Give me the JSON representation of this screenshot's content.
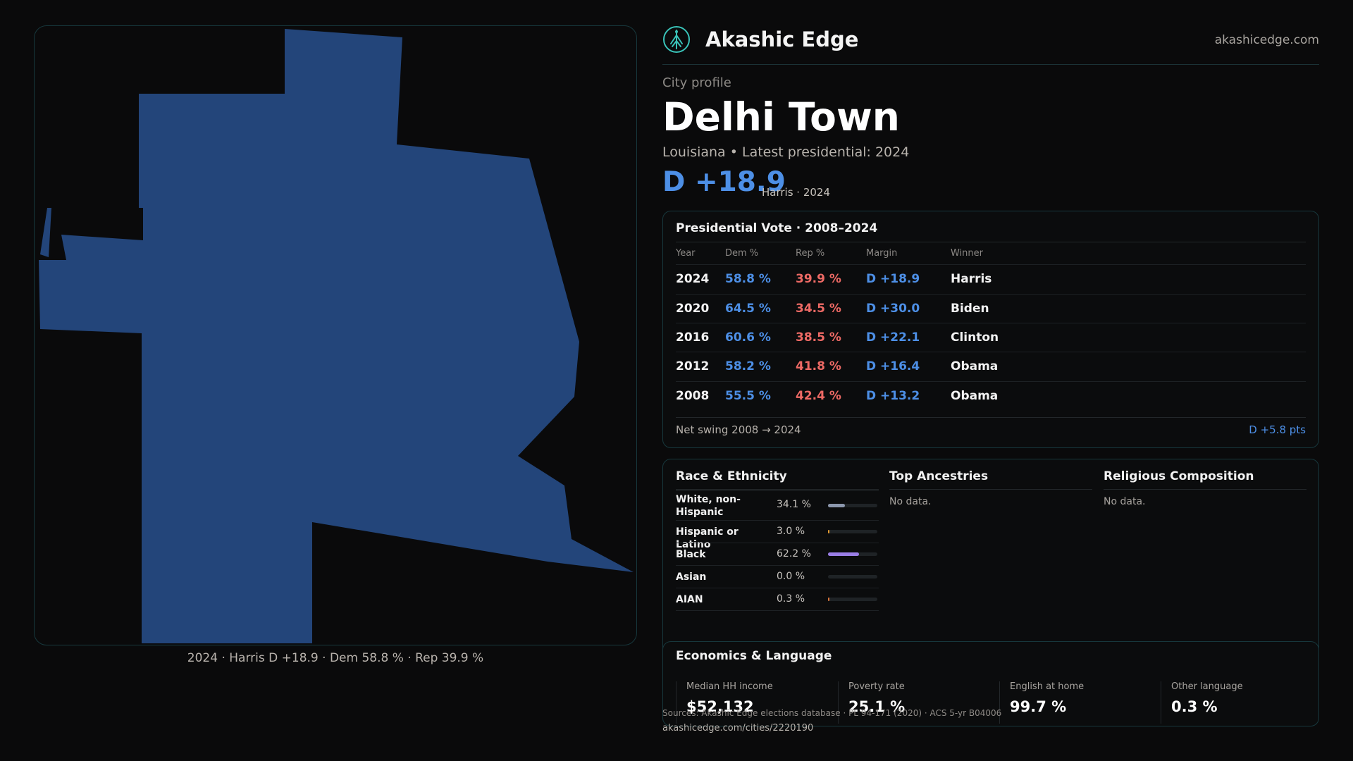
{
  "map": {
    "fill_color": "#23457a",
    "border_color": "#17383d",
    "caption": "2024 · Harris D +18.9 · Dem 58.8 % · Rep 39.9 %"
  },
  "header": {
    "brand": "Akashic Edge",
    "url": "akashicedge.com",
    "logo_icon": "compass-tree-icon"
  },
  "profile": {
    "eyebrow": "City profile",
    "title": "Delhi Town",
    "subtitle": "Louisiana • Latest presidential: 2024",
    "margin": "D +18.9",
    "margin_note": "Harris · 2024"
  },
  "vote_table": {
    "title": "Presidential Vote · 2008–2024",
    "headers": [
      "Year",
      "Dem %",
      "Rep %",
      "Margin",
      "Winner"
    ],
    "rows": [
      {
        "year": "2024",
        "dem": "58.8 %",
        "rep": "39.9 %",
        "margin": "D +18.9",
        "winner": "Harris"
      },
      {
        "year": "2020",
        "dem": "64.5 %",
        "rep": "34.5 %",
        "margin": "D +30.0",
        "winner": "Biden"
      },
      {
        "year": "2016",
        "dem": "60.6 %",
        "rep": "38.5 %",
        "margin": "D +22.1",
        "winner": "Clinton"
      },
      {
        "year": "2012",
        "dem": "58.2 %",
        "rep": "41.8 %",
        "margin": "D +16.4",
        "winner": "Obama"
      },
      {
        "year": "2008",
        "dem": "55.5 %",
        "rep": "42.4 %",
        "margin": "D +13.2",
        "winner": "Obama"
      }
    ],
    "swing_label": "Net swing 2008 → 2024",
    "swing_value": "D +5.8 pts",
    "colors": {
      "dem": "#4d8fe6",
      "rep": "#ee6a65"
    }
  },
  "demographics": {
    "race_title": "Race & Ethnicity",
    "race_rows": [
      {
        "label": "White, non-Hispanic",
        "pct": "34.1 %",
        "value": 34.1,
        "color": "#8c97ad"
      },
      {
        "label": "Hispanic or Latino",
        "pct": "3.0 %",
        "value": 3.0,
        "color": "#e29a2f"
      },
      {
        "label": "Black",
        "pct": "62.2 %",
        "value": 62.2,
        "color": "#9a7ee6"
      },
      {
        "label": "Asian",
        "pct": "0.0 %",
        "value": 0.0,
        "color": "#3fb6a6"
      },
      {
        "label": "AIAN",
        "pct": "0.3 %",
        "value": 0.3,
        "color": "#d9743a"
      }
    ],
    "ancestry_title": "Top Ancestries",
    "ancestry_empty": "No data.",
    "religion_title": "Religious Composition",
    "religion_empty": "No data."
  },
  "economics": {
    "title": "Economics & Language",
    "items": [
      {
        "label": "Median HH income",
        "value": "$52,132"
      },
      {
        "label": "Poverty rate",
        "value": "25.1 %"
      },
      {
        "label": "English at home",
        "value": "99.7 %"
      },
      {
        "label": "Other language",
        "value": "0.3 %"
      }
    ]
  },
  "footer": {
    "sources": "Sources: Akashic Edge elections database · PL 94-171 (2020) · ACS 5-yr B04006",
    "permalink": "akashicedge.com/cities/2220190"
  }
}
